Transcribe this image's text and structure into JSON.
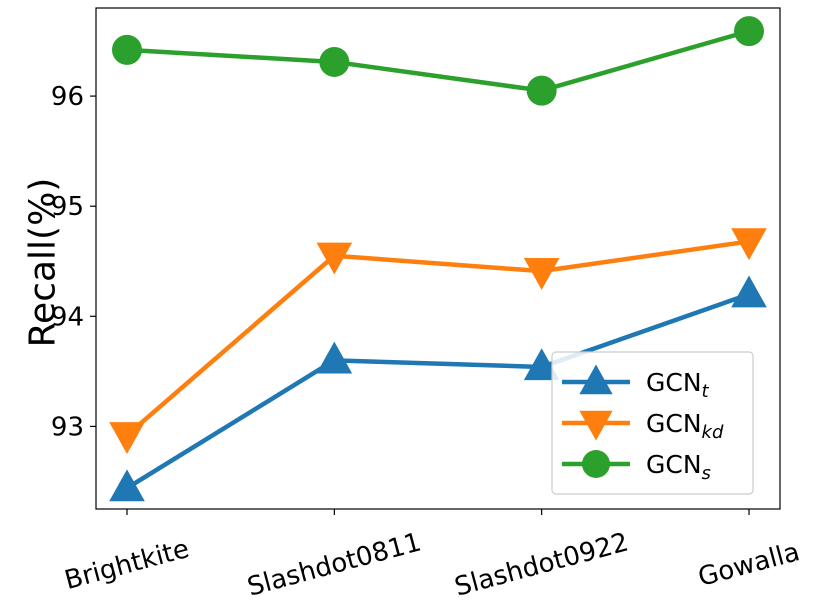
{
  "chart_data": {
    "type": "line",
    "categories": [
      "Brightkite",
      "Slashdot0811",
      "Slashdot0922",
      "Gowalla"
    ],
    "ylabel": "Recall(%)",
    "xlabel": "",
    "ylim": [
      92.25,
      96.8
    ],
    "yticks": [
      93,
      94,
      95,
      96
    ],
    "grid": false,
    "legend_position": "lower-right",
    "series": [
      {
        "name": "GCN",
        "subscript": "t",
        "color": "#1f77b4",
        "marker": "triangle-up",
        "values": [
          92.44,
          93.6,
          93.54,
          94.2
        ]
      },
      {
        "name": "GCN",
        "subscript": "kd",
        "color": "#ff7f0e",
        "marker": "triangle-down",
        "values": [
          92.92,
          94.55,
          94.41,
          94.68
        ]
      },
      {
        "name": "GCN",
        "subscript": "s",
        "color": "#2ca02c",
        "marker": "circle",
        "values": [
          96.42,
          96.31,
          96.05,
          96.59
        ]
      }
    ]
  }
}
